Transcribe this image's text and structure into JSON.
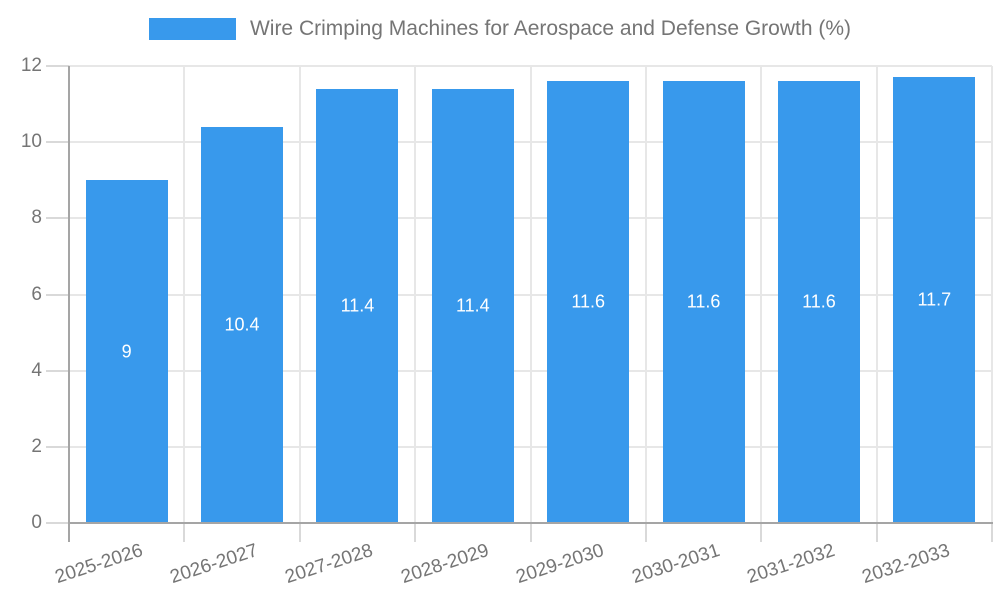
{
  "chart_data": {
    "type": "bar",
    "series_name": "Wire Crimping Machines for Aerospace and Defense Growth (%)",
    "categories": [
      "2025-2026",
      "2026-2027",
      "2027-2028",
      "2028-2029",
      "2029-2030",
      "2030-2031",
      "2031-2032",
      "2032-2033"
    ],
    "values": [
      9,
      10.4,
      11.4,
      11.4,
      11.6,
      11.6,
      11.6,
      11.7
    ],
    "value_labels": [
      "9",
      "10.4",
      "11.4",
      "11.4",
      "11.6",
      "11.6",
      "11.6",
      "11.7"
    ],
    "title": "",
    "xlabel": "",
    "ylabel": "",
    "ylim": [
      0,
      12
    ],
    "yticks": [
      0,
      2,
      4,
      6,
      8,
      10,
      12
    ],
    "grid": true,
    "legend_position": "top",
    "colors": {
      "bar": "#3899ec",
      "grid": "#e7e7e7",
      "axis": "#a5a5a5",
      "tick": "#d9d9d9",
      "text": "#757575",
      "value_label": "#ffffff",
      "background": "#ffffff"
    }
  }
}
